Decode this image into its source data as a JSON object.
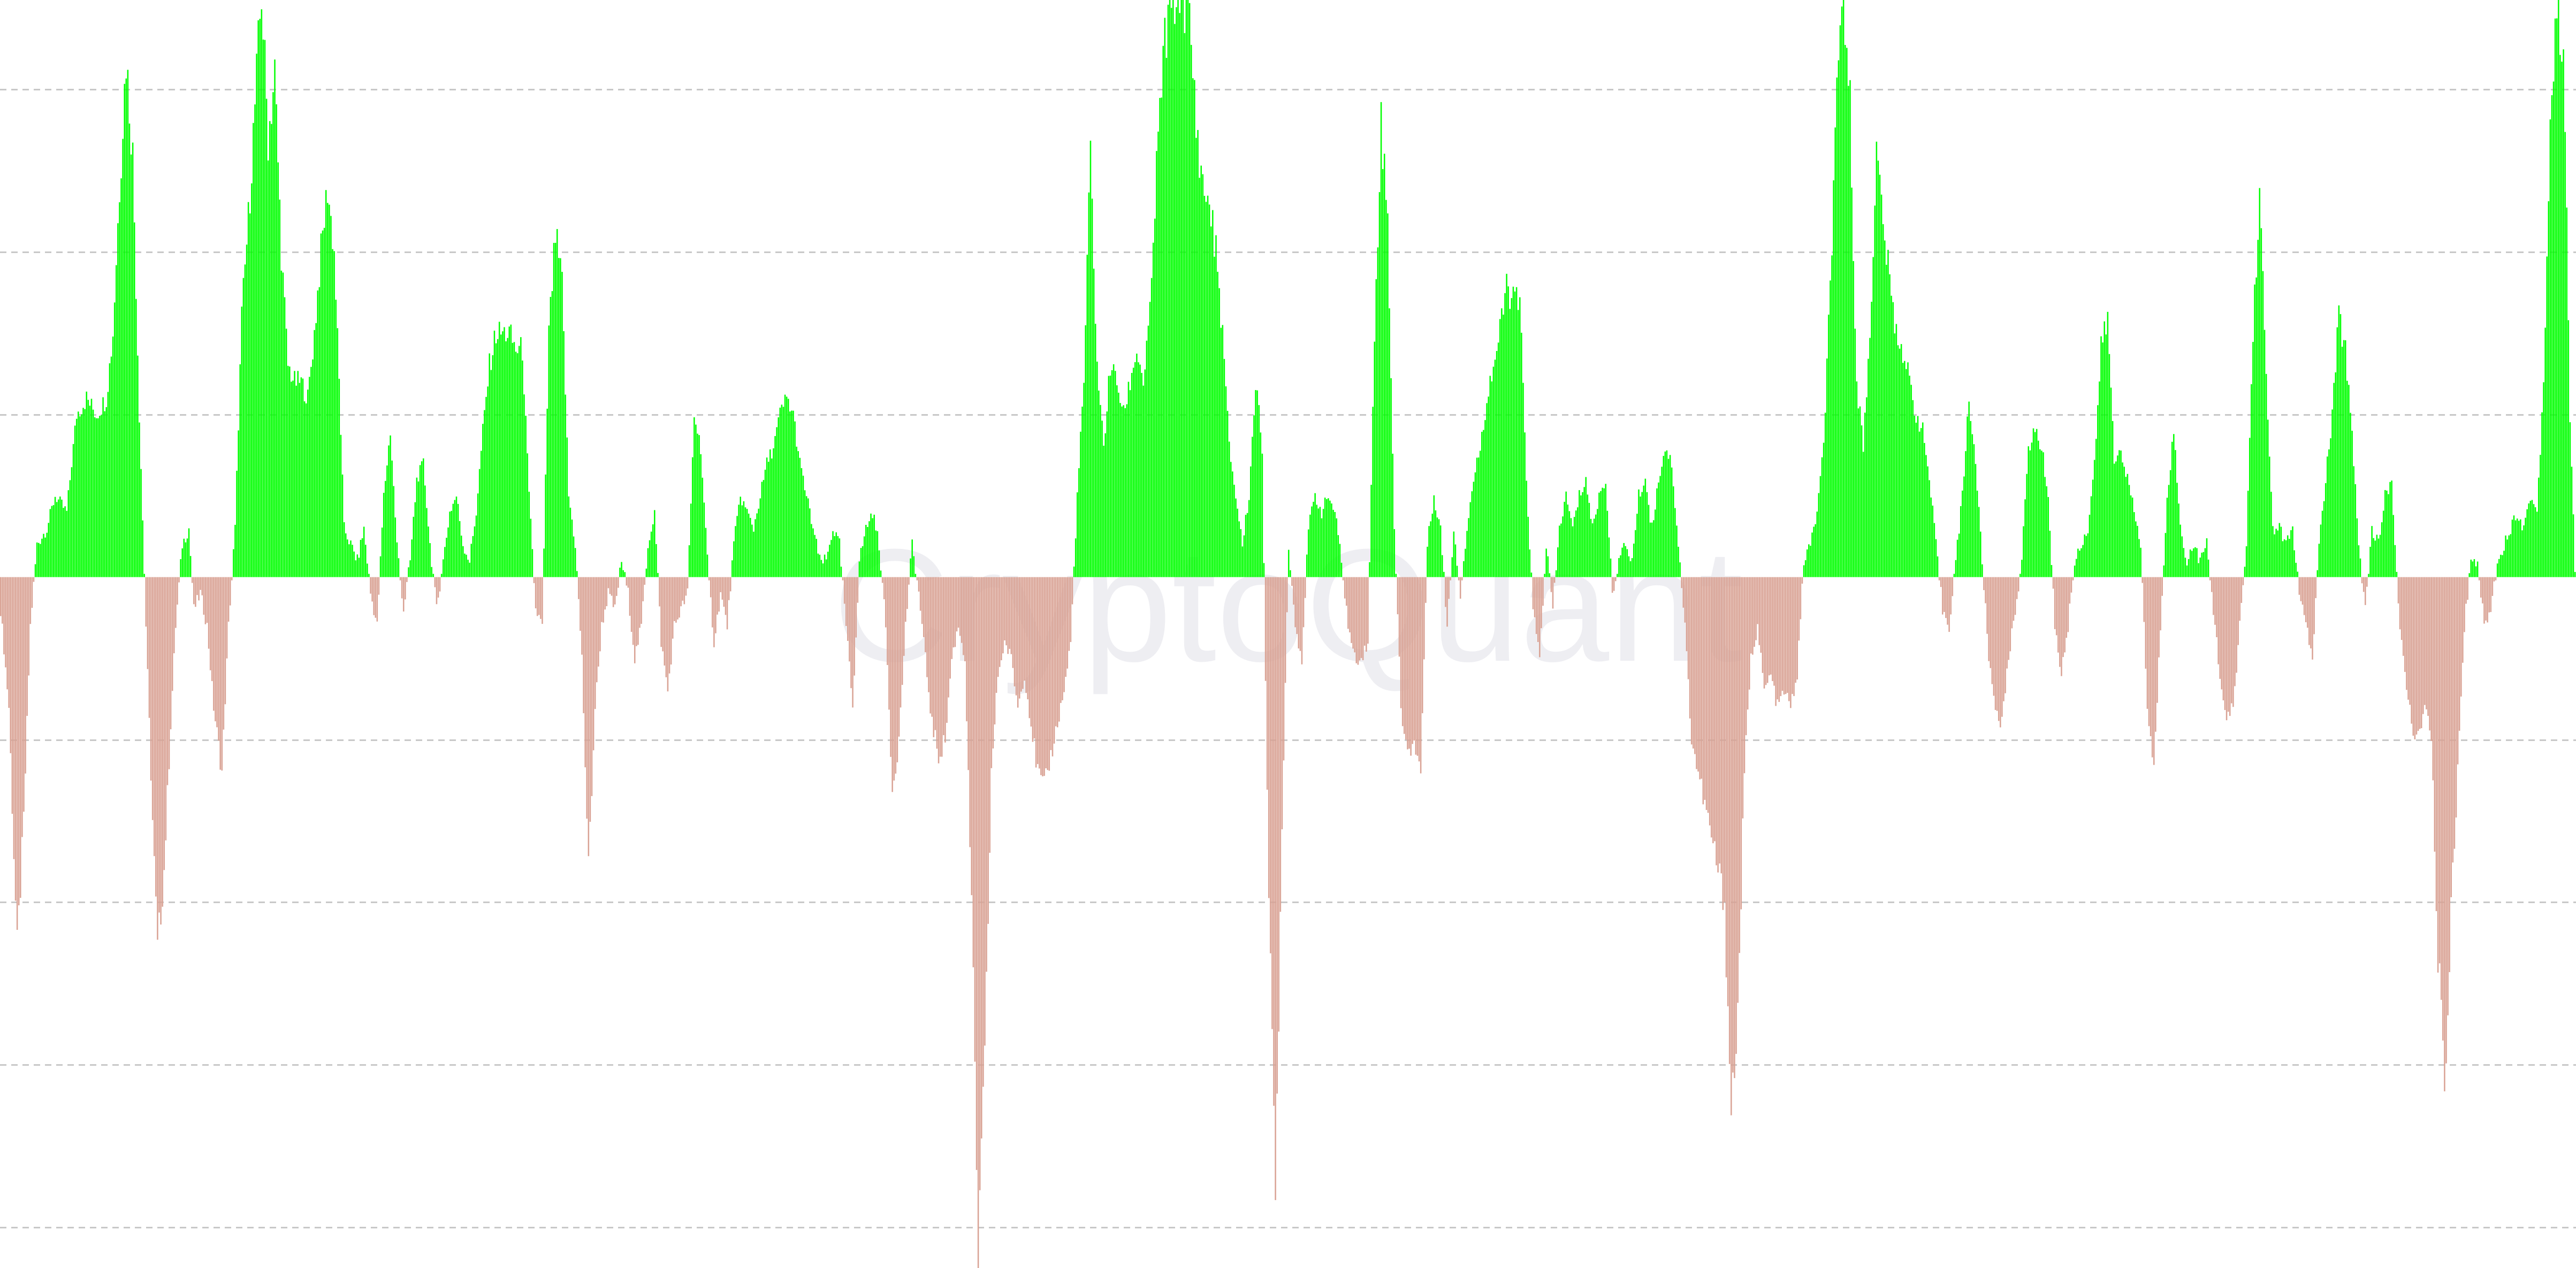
{
  "watermark": {
    "text": "CryptoQuant",
    "color": "#eeeef2"
  },
  "colors": {
    "positive": "#00ff00",
    "negative": "#d9a294",
    "grid": "#c8c8c8",
    "background": "#ffffff"
  },
  "chart_data": {
    "type": "bar",
    "title": "",
    "xlabel": "",
    "ylabel": "",
    "grid": true,
    "legend": "none",
    "ylim": [
      -4.25,
      3.55
    ],
    "gridlines": [
      3.0,
      2.0,
      1.0,
      -1.0,
      -2.0,
      -3.0,
      -4.0
    ],
    "x_count": 1560,
    "anchors": [
      [
        0,
        -0.2
      ],
      [
        5,
        -0.8
      ],
      [
        10,
        -2.3
      ],
      [
        14,
        -1.5
      ],
      [
        18,
        -0.3
      ],
      [
        22,
        0.2
      ],
      [
        28,
        0.3
      ],
      [
        33,
        0.5
      ],
      [
        40,
        0.4
      ],
      [
        46,
        1.0
      ],
      [
        52,
        1.1
      ],
      [
        58,
        1.0
      ],
      [
        64,
        1.1
      ],
      [
        68,
        1.5
      ],
      [
        72,
        2.4
      ],
      [
        76,
        3.2
      ],
      [
        80,
        2.6
      ],
      [
        84,
        1.0
      ],
      [
        88,
        -0.3
      ],
      [
        92,
        -1.5
      ],
      [
        95,
        -2.3
      ],
      [
        99,
        -1.8
      ],
      [
        103,
        -0.9
      ],
      [
        106,
        -0.3
      ],
      [
        110,
        0.2
      ],
      [
        114,
        0.3
      ],
      [
        117,
        -0.2
      ],
      [
        121,
        -0.1
      ],
      [
        125,
        -0.3
      ],
      [
        129,
        -0.8
      ],
      [
        134,
        -1.2
      ],
      [
        138,
        -0.3
      ],
      [
        142,
        0.3
      ],
      [
        146,
        1.6
      ],
      [
        150,
        2.2
      ],
      [
        154,
        2.9
      ],
      [
        158,
        3.6
      ],
      [
        162,
        2.7
      ],
      [
        166,
        3.1
      ],
      [
        170,
        2.0
      ],
      [
        174,
        1.3
      ],
      [
        178,
        1.2
      ],
      [
        182,
        1.2
      ],
      [
        186,
        1.1
      ],
      [
        190,
        1.5
      ],
      [
        194,
        2.0
      ],
      [
        198,
        2.4
      ],
      [
        202,
        2.0
      ],
      [
        205,
        1.2
      ],
      [
        208,
        0.3
      ],
      [
        212,
        0.2
      ],
      [
        216,
        0.1
      ],
      [
        220,
        0.3
      ],
      [
        224,
        -0.1
      ],
      [
        228,
        -0.3
      ],
      [
        232,
        0.5
      ],
      [
        236,
        0.9
      ],
      [
        240,
        0.2
      ],
      [
        244,
        -0.2
      ],
      [
        248,
        0.1
      ],
      [
        252,
        0.6
      ],
      [
        256,
        0.7
      ],
      [
        260,
        0.2
      ],
      [
        264,
        -0.2
      ],
      [
        268,
        0.1
      ],
      [
        272,
        0.4
      ],
      [
        276,
        0.5
      ],
      [
        280,
        0.2
      ],
      [
        284,
        0.1
      ],
      [
        288,
        0.4
      ],
      [
        292,
        0.9
      ],
      [
        296,
        1.3
      ],
      [
        300,
        1.5
      ],
      [
        304,
        1.5
      ],
      [
        308,
        1.5
      ],
      [
        312,
        1.4
      ],
      [
        316,
        1.4
      ],
      [
        320,
        0.5
      ],
      [
        324,
        -0.2
      ],
      [
        328,
        -0.3
      ],
      [
        332,
        1.5
      ],
      [
        336,
        2.1
      ],
      [
        340,
        1.8
      ],
      [
        344,
        0.5
      ],
      [
        348,
        0.2
      ],
      [
        352,
        -0.5
      ],
      [
        356,
        -1.8
      ],
      [
        360,
        -0.8
      ],
      [
        364,
        -0.3
      ],
      [
        368,
        -0.1
      ],
      [
        372,
        -0.2
      ],
      [
        376,
        0.1
      ],
      [
        380,
        -0.1
      ],
      [
        384,
        -0.5
      ],
      [
        388,
        -0.3
      ],
      [
        392,
        0.2
      ],
      [
        396,
        0.4
      ],
      [
        400,
        -0.4
      ],
      [
        404,
        -0.7
      ],
      [
        408,
        -0.3
      ],
      [
        412,
        -0.2
      ],
      [
        416,
        -0.1
      ],
      [
        420,
        1.0
      ],
      [
        424,
        0.8
      ],
      [
        428,
        0.1
      ],
      [
        432,
        -0.4
      ],
      [
        436,
        -0.1
      ],
      [
        440,
        -0.3
      ],
      [
        444,
        0.2
      ],
      [
        448,
        0.5
      ],
      [
        452,
        0.4
      ],
      [
        456,
        0.3
      ],
      [
        460,
        0.5
      ],
      [
        464,
        0.7
      ],
      [
        468,
        0.8
      ],
      [
        472,
        1.0
      ],
      [
        476,
        1.1
      ],
      [
        480,
        1.0
      ],
      [
        484,
        0.7
      ],
      [
        488,
        0.5
      ],
      [
        492,
        0.3
      ],
      [
        496,
        0.1
      ],
      [
        500,
        0.1
      ],
      [
        504,
        0.3
      ],
      [
        508,
        0.2
      ],
      [
        512,
        -0.3
      ],
      [
        516,
        -0.8
      ],
      [
        520,
        0.1
      ],
      [
        524,
        0.3
      ],
      [
        528,
        0.4
      ],
      [
        532,
        0.2
      ],
      [
        536,
        -0.3
      ],
      [
        540,
        -1.3
      ],
      [
        544,
        -1.0
      ],
      [
        548,
        -0.3
      ],
      [
        552,
        0.2
      ],
      [
        556,
        -0.1
      ],
      [
        560,
        -0.5
      ],
      [
        564,
        -0.9
      ],
      [
        568,
        -1.1
      ],
      [
        572,
        -1.0
      ],
      [
        576,
        -0.5
      ],
      [
        580,
        -0.3
      ],
      [
        584,
        -0.5
      ],
      [
        588,
        -2.0
      ],
      [
        592,
        -4.2
      ],
      [
        596,
        -3.0
      ],
      [
        600,
        -1.2
      ],
      [
        604,
        -0.6
      ],
      [
        608,
        -0.4
      ],
      [
        612,
        -0.5
      ],
      [
        616,
        -0.8
      ],
      [
        620,
        -0.6
      ],
      [
        624,
        -0.9
      ],
      [
        628,
        -1.2
      ],
      [
        632,
        -1.3
      ],
      [
        636,
        -1.1
      ],
      [
        640,
        -0.9
      ],
      [
        644,
        -0.7
      ],
      [
        648,
        -0.4
      ],
      [
        652,
        0.5
      ],
      [
        656,
        1.2
      ],
      [
        660,
        2.6
      ],
      [
        664,
        1.3
      ],
      [
        668,
        0.8
      ],
      [
        672,
        1.3
      ],
      [
        676,
        1.2
      ],
      [
        680,
        1.0
      ],
      [
        684,
        1.2
      ],
      [
        688,
        1.4
      ],
      [
        692,
        1.2
      ],
      [
        696,
        1.6
      ],
      [
        700,
        2.5
      ],
      [
        704,
        3.2
      ],
      [
        708,
        3.5
      ],
      [
        712,
        3.6
      ],
      [
        716,
        3.6
      ],
      [
        720,
        3.4
      ],
      [
        724,
        2.8
      ],
      [
        728,
        2.4
      ],
      [
        732,
        2.3
      ],
      [
        736,
        2.0
      ],
      [
        740,
        1.5
      ],
      [
        744,
        0.8
      ],
      [
        748,
        0.5
      ],
      [
        752,
        0.2
      ],
      [
        756,
        0.5
      ],
      [
        760,
        1.2
      ],
      [
        764,
        0.8
      ],
      [
        768,
        -2.0
      ],
      [
        772,
        -3.8
      ],
      [
        776,
        -1.5
      ],
      [
        780,
        0.2
      ],
      [
        784,
        -0.3
      ],
      [
        788,
        -0.5
      ],
      [
        792,
        0.3
      ],
      [
        796,
        0.5
      ],
      [
        800,
        0.4
      ],
      [
        804,
        0.5
      ],
      [
        808,
        0.4
      ],
      [
        812,
        0.1
      ],
      [
        816,
        -0.3
      ],
      [
        820,
        -0.5
      ],
      [
        824,
        -0.5
      ],
      [
        828,
        -0.4
      ],
      [
        832,
        1.5
      ],
      [
        836,
        2.8
      ],
      [
        840,
        2.2
      ],
      [
        844,
        0.3
      ],
      [
        848,
        -0.8
      ],
      [
        852,
        -1.1
      ],
      [
        856,
        -1.0
      ],
      [
        860,
        -1.2
      ],
      [
        864,
        0.2
      ],
      [
        868,
        0.5
      ],
      [
        872,
        0.3
      ],
      [
        876,
        -0.3
      ],
      [
        880,
        0.3
      ],
      [
        884,
        -0.1
      ],
      [
        888,
        0.3
      ],
      [
        892,
        0.6
      ],
      [
        896,
        0.8
      ],
      [
        900,
        1.1
      ],
      [
        904,
        1.3
      ],
      [
        908,
        1.5
      ],
      [
        912,
        1.8
      ],
      [
        916,
        1.7
      ],
      [
        920,
        1.7
      ],
      [
        924,
        0.6
      ],
      [
        928,
        -0.2
      ],
      [
        932,
        -0.5
      ],
      [
        936,
        0.2
      ],
      [
        940,
        -0.2
      ],
      [
        944,
        0.3
      ],
      [
        948,
        0.5
      ],
      [
        952,
        0.3
      ],
      [
        956,
        0.5
      ],
      [
        960,
        0.6
      ],
      [
        964,
        0.3
      ],
      [
        968,
        0.5
      ],
      [
        972,
        0.6
      ],
      [
        976,
        -0.1
      ],
      [
        980,
        0.1
      ],
      [
        984,
        0.2
      ],
      [
        988,
        0.1
      ],
      [
        992,
        0.5
      ],
      [
        996,
        0.6
      ],
      [
        1000,
        0.3
      ],
      [
        1004,
        0.6
      ],
      [
        1008,
        0.8
      ],
      [
        1012,
        0.7
      ],
      [
        1016,
        0.2
      ],
      [
        1020,
        -0.3
      ],
      [
        1024,
        -1.0
      ],
      [
        1028,
        -1.2
      ],
      [
        1032,
        -1.4
      ],
      [
        1036,
        -1.6
      ],
      [
        1040,
        -1.8
      ],
      [
        1044,
        -2.0
      ],
      [
        1048,
        -3.3
      ],
      [
        1052,
        -2.7
      ],
      [
        1056,
        -1.2
      ],
      [
        1060,
        -0.5
      ],
      [
        1064,
        -0.3
      ],
      [
        1068,
        -0.7
      ],
      [
        1072,
        -0.6
      ],
      [
        1076,
        -0.8
      ],
      [
        1080,
        -0.7
      ],
      [
        1084,
        -0.8
      ],
      [
        1088,
        -0.6
      ],
      [
        1092,
        0.1
      ],
      [
        1096,
        0.2
      ],
      [
        1100,
        0.4
      ],
      [
        1104,
        0.8
      ],
      [
        1108,
        1.8
      ],
      [
        1112,
        2.9
      ],
      [
        1116,
        3.6
      ],
      [
        1120,
        2.9
      ],
      [
        1124,
        1.2
      ],
      [
        1128,
        0.8
      ],
      [
        1132,
        1.5
      ],
      [
        1136,
        2.6
      ],
      [
        1140,
        2.2
      ],
      [
        1144,
        1.8
      ],
      [
        1148,
        1.5
      ],
      [
        1152,
        1.4
      ],
      [
        1156,
        1.2
      ],
      [
        1160,
        1.0
      ],
      [
        1164,
        0.9
      ],
      [
        1168,
        0.6
      ],
      [
        1172,
        0.2
      ],
      [
        1176,
        -0.2
      ],
      [
        1180,
        -0.3
      ],
      [
        1184,
        0.1
      ],
      [
        1188,
        0.5
      ],
      [
        1192,
        1.1
      ],
      [
        1196,
        0.7
      ],
      [
        1200,
        0.1
      ],
      [
        1204,
        -0.5
      ],
      [
        1208,
        -0.8
      ],
      [
        1212,
        -0.9
      ],
      [
        1216,
        -0.5
      ],
      [
        1220,
        -0.2
      ],
      [
        1224,
        0.1
      ],
      [
        1228,
        0.8
      ],
      [
        1232,
        0.9
      ],
      [
        1236,
        0.8
      ],
      [
        1240,
        0.5
      ],
      [
        1244,
        -0.3
      ],
      [
        1248,
        -0.6
      ],
      [
        1252,
        -0.3
      ],
      [
        1256,
        0.1
      ],
      [
        1260,
        0.2
      ],
      [
        1264,
        0.3
      ],
      [
        1268,
        0.7
      ],
      [
        1272,
        1.4
      ],
      [
        1276,
        1.6
      ],
      [
        1280,
        0.7
      ],
      [
        1284,
        0.8
      ],
      [
        1288,
        0.6
      ],
      [
        1292,
        0.4
      ],
      [
        1296,
        0.2
      ],
      [
        1300,
        -0.8
      ],
      [
        1304,
        -1.2
      ],
      [
        1308,
        -0.3
      ],
      [
        1312,
        0.5
      ],
      [
        1316,
        0.9
      ],
      [
        1320,
        0.3
      ],
      [
        1324,
        0.1
      ],
      [
        1328,
        0.2
      ],
      [
        1332,
        0.1
      ],
      [
        1336,
        0.2
      ],
      [
        1340,
        -0.2
      ],
      [
        1344,
        -0.6
      ],
      [
        1348,
        -0.9
      ],
      [
        1352,
        -0.8
      ],
      [
        1356,
        -0.3
      ],
      [
        1360,
        0.2
      ],
      [
        1364,
        1.5
      ],
      [
        1368,
        2.4
      ],
      [
        1372,
        1.2
      ],
      [
        1376,
        0.3
      ],
      [
        1380,
        0.3
      ],
      [
        1384,
        0.2
      ],
      [
        1388,
        0.3
      ],
      [
        1392,
        -0.1
      ],
      [
        1396,
        -0.3
      ],
      [
        1400,
        -0.5
      ],
      [
        1404,
        0.2
      ],
      [
        1408,
        0.6
      ],
      [
        1412,
        1.0
      ],
      [
        1416,
        1.6
      ],
      [
        1420,
        1.4
      ],
      [
        1424,
        0.9
      ],
      [
        1428,
        0.2
      ],
      [
        1432,
        -0.2
      ],
      [
        1436,
        0.3
      ],
      [
        1440,
        0.2
      ],
      [
        1444,
        0.5
      ],
      [
        1448,
        0.6
      ],
      [
        1452,
        -0.2
      ],
      [
        1456,
        -0.6
      ],
      [
        1460,
        -0.9
      ],
      [
        1464,
        -1.0
      ],
      [
        1468,
        -0.8
      ],
      [
        1472,
        -1.0
      ],
      [
        1476,
        -2.3
      ],
      [
        1480,
        -3.2
      ],
      [
        1484,
        -2.0
      ],
      [
        1488,
        -1.2
      ],
      [
        1492,
        -0.3
      ],
      [
        1496,
        0.1
      ],
      [
        1500,
        0.1
      ],
      [
        1504,
        -0.3
      ],
      [
        1508,
        -0.2
      ],
      [
        1512,
        0.1
      ],
      [
        1516,
        0.2
      ],
      [
        1520,
        0.3
      ],
      [
        1524,
        0.4
      ],
      [
        1528,
        0.3
      ],
      [
        1532,
        0.5
      ],
      [
        1536,
        0.4
      ],
      [
        1540,
        1.2
      ],
      [
        1544,
        2.8
      ],
      [
        1548,
        3.5
      ],
      [
        1552,
        3.3
      ],
      [
        1556,
        1.0
      ],
      [
        1560,
        -0.3
      ],
      [
        1564,
        -1.3
      ],
      [
        1567,
        -2.2
      ]
    ]
  }
}
